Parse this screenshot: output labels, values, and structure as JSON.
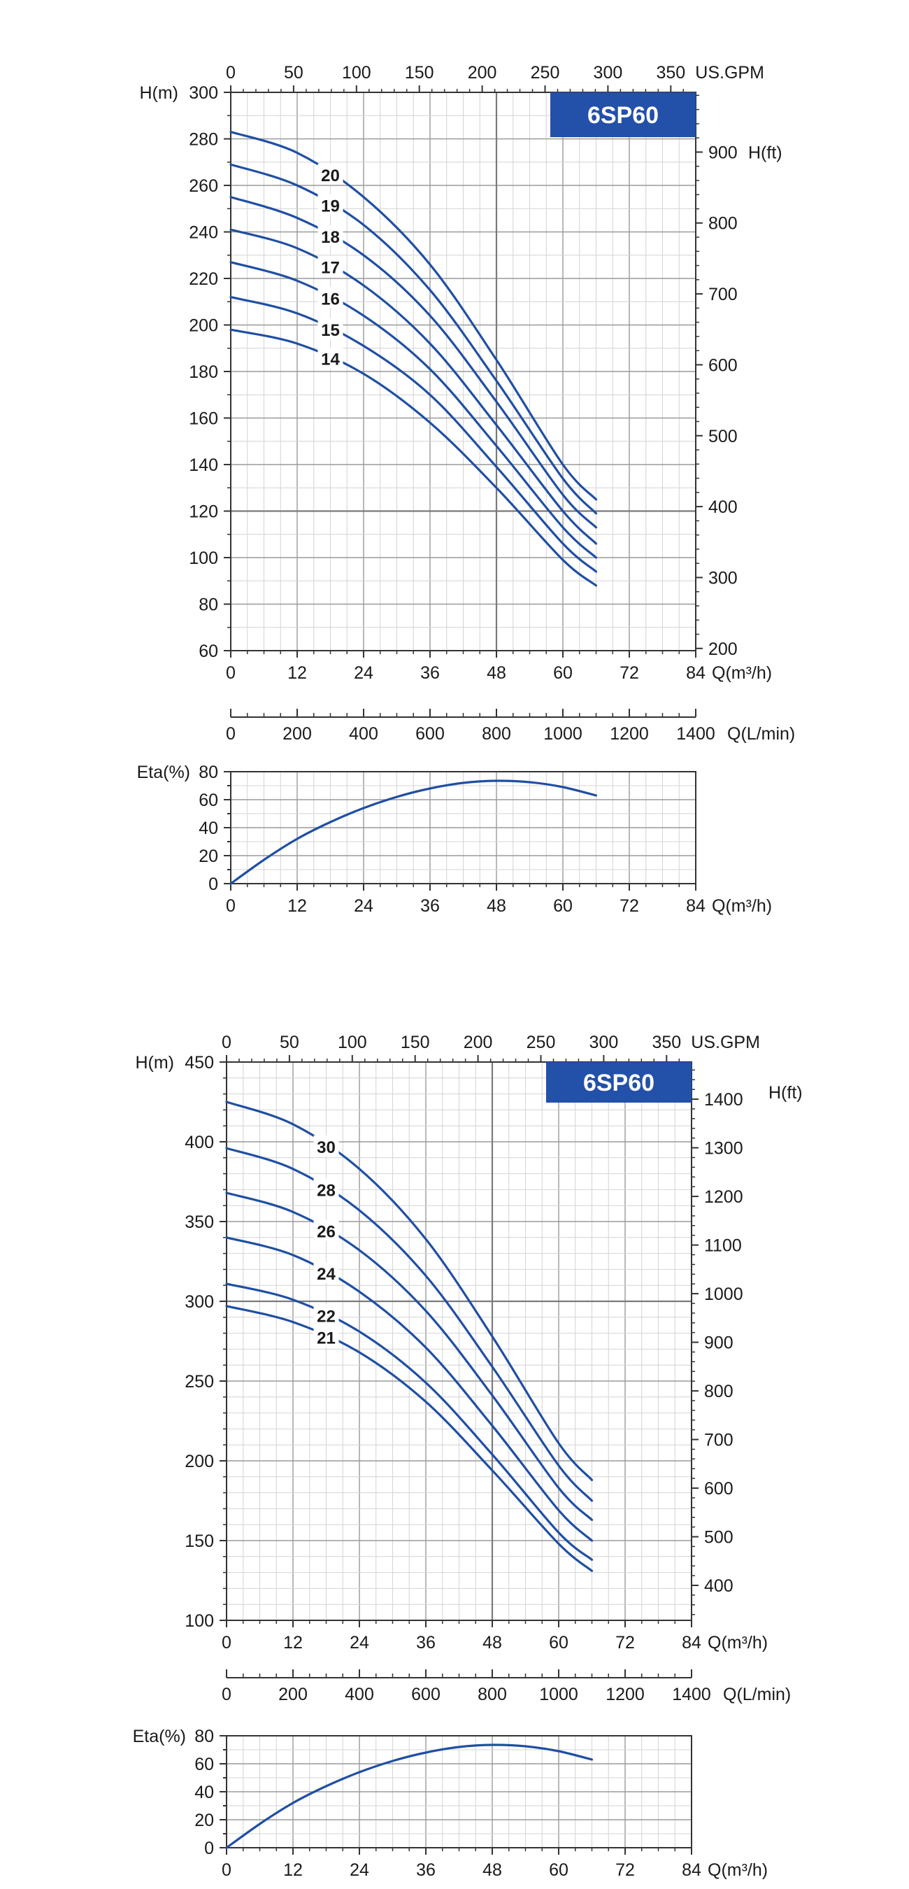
{
  "charts": [
    {
      "badge": "6SP60",
      "head_chart": {
        "top_axis": {
          "title": "US.GPM",
          "ticks": [
            0,
            50,
            100,
            150,
            200,
            250,
            300,
            350
          ],
          "range": [
            0,
            369.85
          ]
        },
        "left_axis": {
          "title": "H(m)",
          "ticks": [
            60,
            80,
            100,
            120,
            140,
            160,
            180,
            200,
            220,
            240,
            260,
            280,
            300
          ]
        },
        "right_axis": {
          "title": "H(ft)",
          "ticks": [
            200,
            300,
            400,
            500,
            600,
            700,
            800,
            900
          ]
        },
        "bottom_axis": {
          "title": "Q(m³/h)",
          "ticks": [
            0,
            12,
            24,
            36,
            48,
            60,
            72,
            84
          ]
        }
      },
      "flow_axis": {
        "title": "Q(L/min)",
        "ticks": [
          0,
          200,
          400,
          600,
          800,
          1000,
          1200,
          1400
        ]
      },
      "eta_chart": {
        "left_axis": {
          "title": "Eta(%)",
          "ticks": [
            0,
            20,
            40,
            60,
            80
          ]
        },
        "bottom_axis": {
          "title": "Q(m³/h)",
          "ticks": [
            0,
            12,
            24,
            36,
            48,
            60,
            72,
            84
          ]
        }
      }
    },
    {
      "badge": "6SP60",
      "head_chart": {
        "top_axis": {
          "title": "US.GPM",
          "ticks": [
            0,
            50,
            100,
            150,
            200,
            250,
            300,
            350
          ],
          "range": [
            0,
            369.85
          ]
        },
        "left_axis": {
          "title": "H(m)",
          "ticks": [
            100,
            150,
            200,
            250,
            300,
            350,
            400,
            450
          ]
        },
        "right_axis": {
          "title": "H(ft)",
          "ticks": [
            400,
            500,
            600,
            700,
            800,
            900,
            1000,
            1100,
            1200,
            1300,
            1400
          ]
        },
        "bottom_axis": {
          "title": "Q(m³/h)",
          "ticks": [
            0,
            12,
            24,
            36,
            48,
            60,
            72,
            84
          ]
        }
      },
      "flow_axis": {
        "title": "Q(L/min)",
        "ticks": [
          0,
          200,
          400,
          600,
          800,
          1000,
          1200,
          1400
        ]
      },
      "eta_chart": {
        "left_axis": {
          "title": "Eta(%)",
          "ticks": [
            0,
            20,
            40,
            60,
            80
          ]
        },
        "bottom_axis": {
          "title": "Q(m³/h)",
          "ticks": [
            0,
            12,
            24,
            36,
            48,
            60,
            72,
            84
          ]
        }
      }
    }
  ],
  "chart_data": [
    {
      "type": "line",
      "xlabel": "Q(m³/h)",
      "ylabel": "H(m)",
      "xlim": [
        0,
        84
      ],
      "ylim": [
        60,
        300
      ],
      "y2label": "H(ft)",
      "y2lim": [
        196.85,
        984.25
      ],
      "x2label": "US.GPM",
      "x2lim": [
        0,
        369.85
      ],
      "grid": true,
      "reference_lines": [
        {
          "axis": "x",
          "value": 48
        },
        {
          "axis": "y",
          "value": 120
        }
      ],
      "series": [
        {
          "name": "20",
          "x": [
            0,
            12,
            24,
            36,
            48,
            60,
            66
          ],
          "y": [
            283,
            274,
            255,
            226,
            185,
            140,
            125
          ],
          "label_at_x": 18
        },
        {
          "name": "19",
          "x": [
            0,
            12,
            24,
            36,
            48,
            60,
            66
          ],
          "y": [
            269,
            260,
            243,
            215,
            176,
            134,
            119
          ],
          "label_at_x": 18
        },
        {
          "name": "18",
          "x": [
            0,
            12,
            24,
            36,
            48,
            60,
            66
          ],
          "y": [
            255,
            246,
            230,
            204,
            167,
            127,
            113
          ],
          "label_at_x": 18
        },
        {
          "name": "17",
          "x": [
            0,
            12,
            24,
            36,
            48,
            60,
            66
          ],
          "y": [
            241,
            233,
            217,
            192,
            157,
            120,
            106
          ],
          "label_at_x": 18
        },
        {
          "name": "16",
          "x": [
            0,
            12,
            24,
            36,
            48,
            60,
            66
          ],
          "y": [
            227,
            219,
            204,
            181,
            148,
            113,
            100
          ],
          "label_at_x": 18
        },
        {
          "name": "15",
          "x": [
            0,
            12,
            24,
            36,
            48,
            60,
            66
          ],
          "y": [
            212,
            205,
            191,
            170,
            139,
            106,
            94
          ],
          "label_at_x": 18
        },
        {
          "name": "14",
          "x": [
            0,
            12,
            24,
            36,
            48,
            60,
            66
          ],
          "y": [
            198,
            192,
            179,
            158,
            130,
            99,
            88
          ],
          "label_at_x": 18
        }
      ]
    },
    {
      "type": "line",
      "xlabel": "Q(m³/h)",
      "ylabel": "Eta(%)",
      "xlim": [
        0,
        84
      ],
      "ylim": [
        0,
        80
      ],
      "grid": true,
      "series": [
        {
          "x": [
            0,
            6,
            12,
            18,
            24,
            30,
            36,
            42,
            48,
            54,
            60,
            66
          ],
          "y": [
            0,
            17,
            32,
            44,
            54,
            62,
            68,
            72,
            73.5,
            72.5,
            69,
            63
          ]
        }
      ]
    },
    {
      "type": "line",
      "xlabel": "Q(m³/h)",
      "ylabel": "H(m)",
      "xlim": [
        0,
        84
      ],
      "ylim": [
        100,
        450
      ],
      "y2label": "H(ft)",
      "y2lim": [
        328.08,
        1476.38
      ],
      "x2label": "US.GPM",
      "x2lim": [
        0,
        369.85
      ],
      "grid": true,
      "reference_lines": [
        {
          "axis": "x",
          "value": 48
        },
        {
          "axis": "y",
          "value": 300
        }
      ],
      "series": [
        {
          "name": "30",
          "x": [
            0,
            12,
            24,
            36,
            48,
            60,
            66
          ],
          "y": [
            425,
            411,
            383,
            339,
            278,
            211,
            188
          ],
          "label_at_x": 18
        },
        {
          "name": "28",
          "x": [
            0,
            12,
            24,
            36,
            48,
            60,
            66
          ],
          "y": [
            396,
            383,
            357,
            316,
            259,
            197,
            175
          ],
          "label_at_x": 18
        },
        {
          "name": "26",
          "x": [
            0,
            12,
            24,
            36,
            48,
            60,
            66
          ],
          "y": [
            368,
            356,
            332,
            294,
            241,
            183,
            163
          ],
          "label_at_x": 18
        },
        {
          "name": "24",
          "x": [
            0,
            12,
            24,
            36,
            48,
            60,
            66
          ],
          "y": [
            340,
            329,
            306,
            271,
            222,
            169,
            150
          ],
          "label_at_x": 18
        },
        {
          "name": "22",
          "x": [
            0,
            12,
            24,
            36,
            48,
            60,
            66
          ],
          "y": [
            311,
            301,
            281,
            249,
            204,
            155,
            138
          ],
          "label_at_x": 18
        },
        {
          "name": "21",
          "x": [
            0,
            12,
            24,
            36,
            48,
            60,
            66
          ],
          "y": [
            297,
            287,
            268,
            237,
            194,
            148,
            131
          ],
          "label_at_x": 18
        }
      ]
    },
    {
      "type": "line",
      "xlabel": "Q(m³/h)",
      "ylabel": "Eta(%)",
      "xlim": [
        0,
        84
      ],
      "ylim": [
        0,
        80
      ],
      "grid": true,
      "series": [
        {
          "x": [
            0,
            6,
            12,
            18,
            24,
            30,
            36,
            42,
            48,
            54,
            60,
            66
          ],
          "y": [
            0,
            17,
            32,
            44,
            54,
            62,
            68,
            72,
            73.5,
            72.5,
            69,
            63
          ]
        }
      ]
    }
  ],
  "colors": {
    "curve": "#1f4fa3",
    "badge_bg": "#2350a8",
    "badge_text": "#ffffff",
    "grid_minor": "#d4d4d4",
    "grid_major": "#9a9a9a",
    "ref_line": "#7a7a7a",
    "frame": "#333333"
  }
}
